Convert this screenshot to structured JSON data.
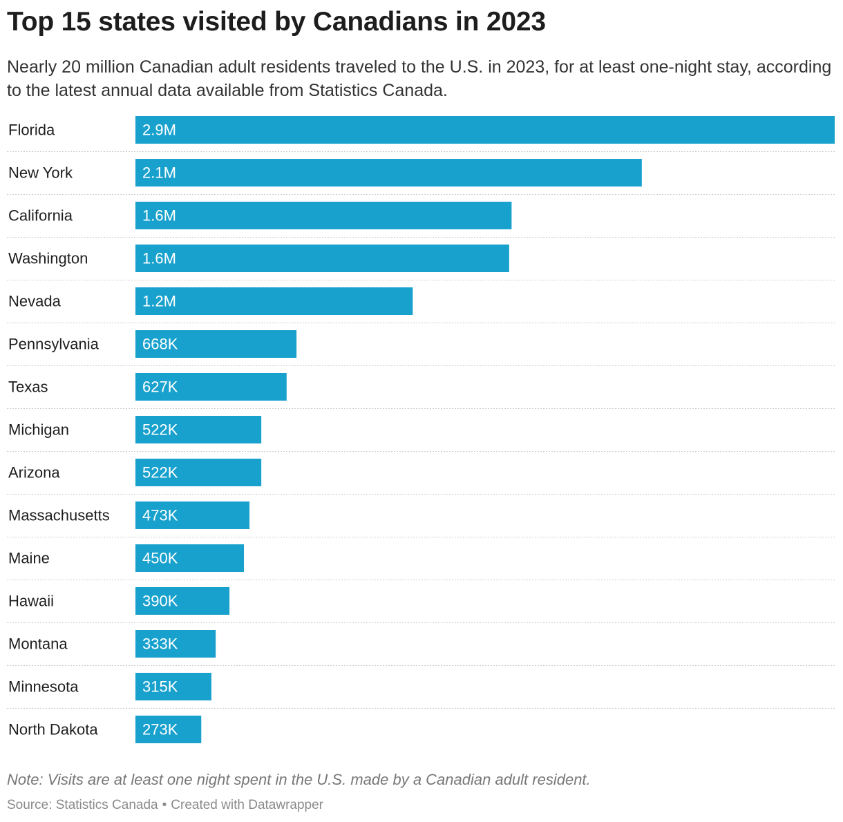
{
  "header": {
    "title": "Top 15 states visited by Canadians in 2023",
    "subtitle": "Nearly 20 million Canadian adult residents traveled to the U.S. in 2023, for at least one-night stay, according to the latest annual data available from Statistics Canada."
  },
  "footer": {
    "note": "Note: Visits are at least one night spent in the U.S. made by a Canadian adult resident.",
    "source": "Source: Statistics Canada",
    "separator": "•",
    "credit": "Created with Datawrapper"
  },
  "colors": {
    "bar": "#18a1cd",
    "bar_label": "#ffffff",
    "category_label": "#1d1d1d",
    "gridline": "#cccccc"
  },
  "chart_data": {
    "type": "bar",
    "orientation": "horizontal",
    "categories": [
      "Florida",
      "New York",
      "California",
      "Washington",
      "Nevada",
      "Pennsylvania",
      "Texas",
      "Michigan",
      "Arizona",
      "Massachusetts",
      "Maine",
      "Hawaii",
      "Montana",
      "Minnesota",
      "North Dakota"
    ],
    "values": [
      2900000,
      2100000,
      1560000,
      1550000,
      1150000,
      668000,
      627000,
      522000,
      522000,
      473000,
      450000,
      390000,
      333000,
      315000,
      273000
    ],
    "value_labels": [
      "2.9M",
      "2.1M",
      "1.6M",
      "1.6M",
      "1.2M",
      "668K",
      "627K",
      "522K",
      "522K",
      "473K",
      "450K",
      "390K",
      "333K",
      "315K",
      "273K"
    ],
    "xlim": [
      0,
      2900000
    ],
    "grid": false,
    "row_separators": true
  }
}
